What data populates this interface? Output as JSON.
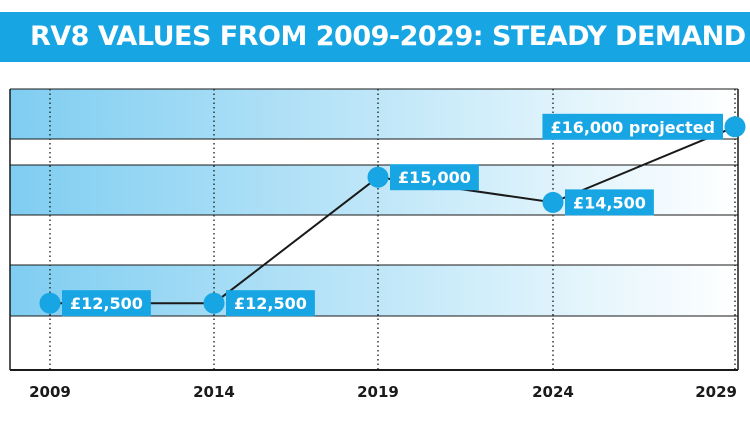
{
  "title": "RV8 VALUES FROM 2009-2029: STEADY DEMAND",
  "colors": {
    "accent": "#17a5e3",
    "band": "#8fd3f2",
    "line": "#1a1a1a",
    "text": "#1a1a1a"
  },
  "chart_data": {
    "type": "line",
    "title": "RV8 VALUES FROM 2009-2029: STEADY DEMAND",
    "xlabel": "",
    "ylabel": "",
    "x": [
      2009,
      2014,
      2019,
      2024,
      2029
    ],
    "series": [
      {
        "values": [
          12500,
          12500,
          15000,
          14500,
          16000
        ],
        "labels": [
          "£12,500",
          "£12,500",
          "£15,000",
          "£14,500",
          "£16,000 projected"
        ]
      }
    ],
    "tick_labels": [
      "2009",
      "2014",
      "2019",
      "2024",
      "2029"
    ],
    "ylim": [
      11750,
      16750
    ],
    "grid": true,
    "shaded_bands": [
      [
        14250,
        15250
      ],
      [
        12250,
        13250
      ],
      [
        15750,
        16750
      ]
    ]
  }
}
